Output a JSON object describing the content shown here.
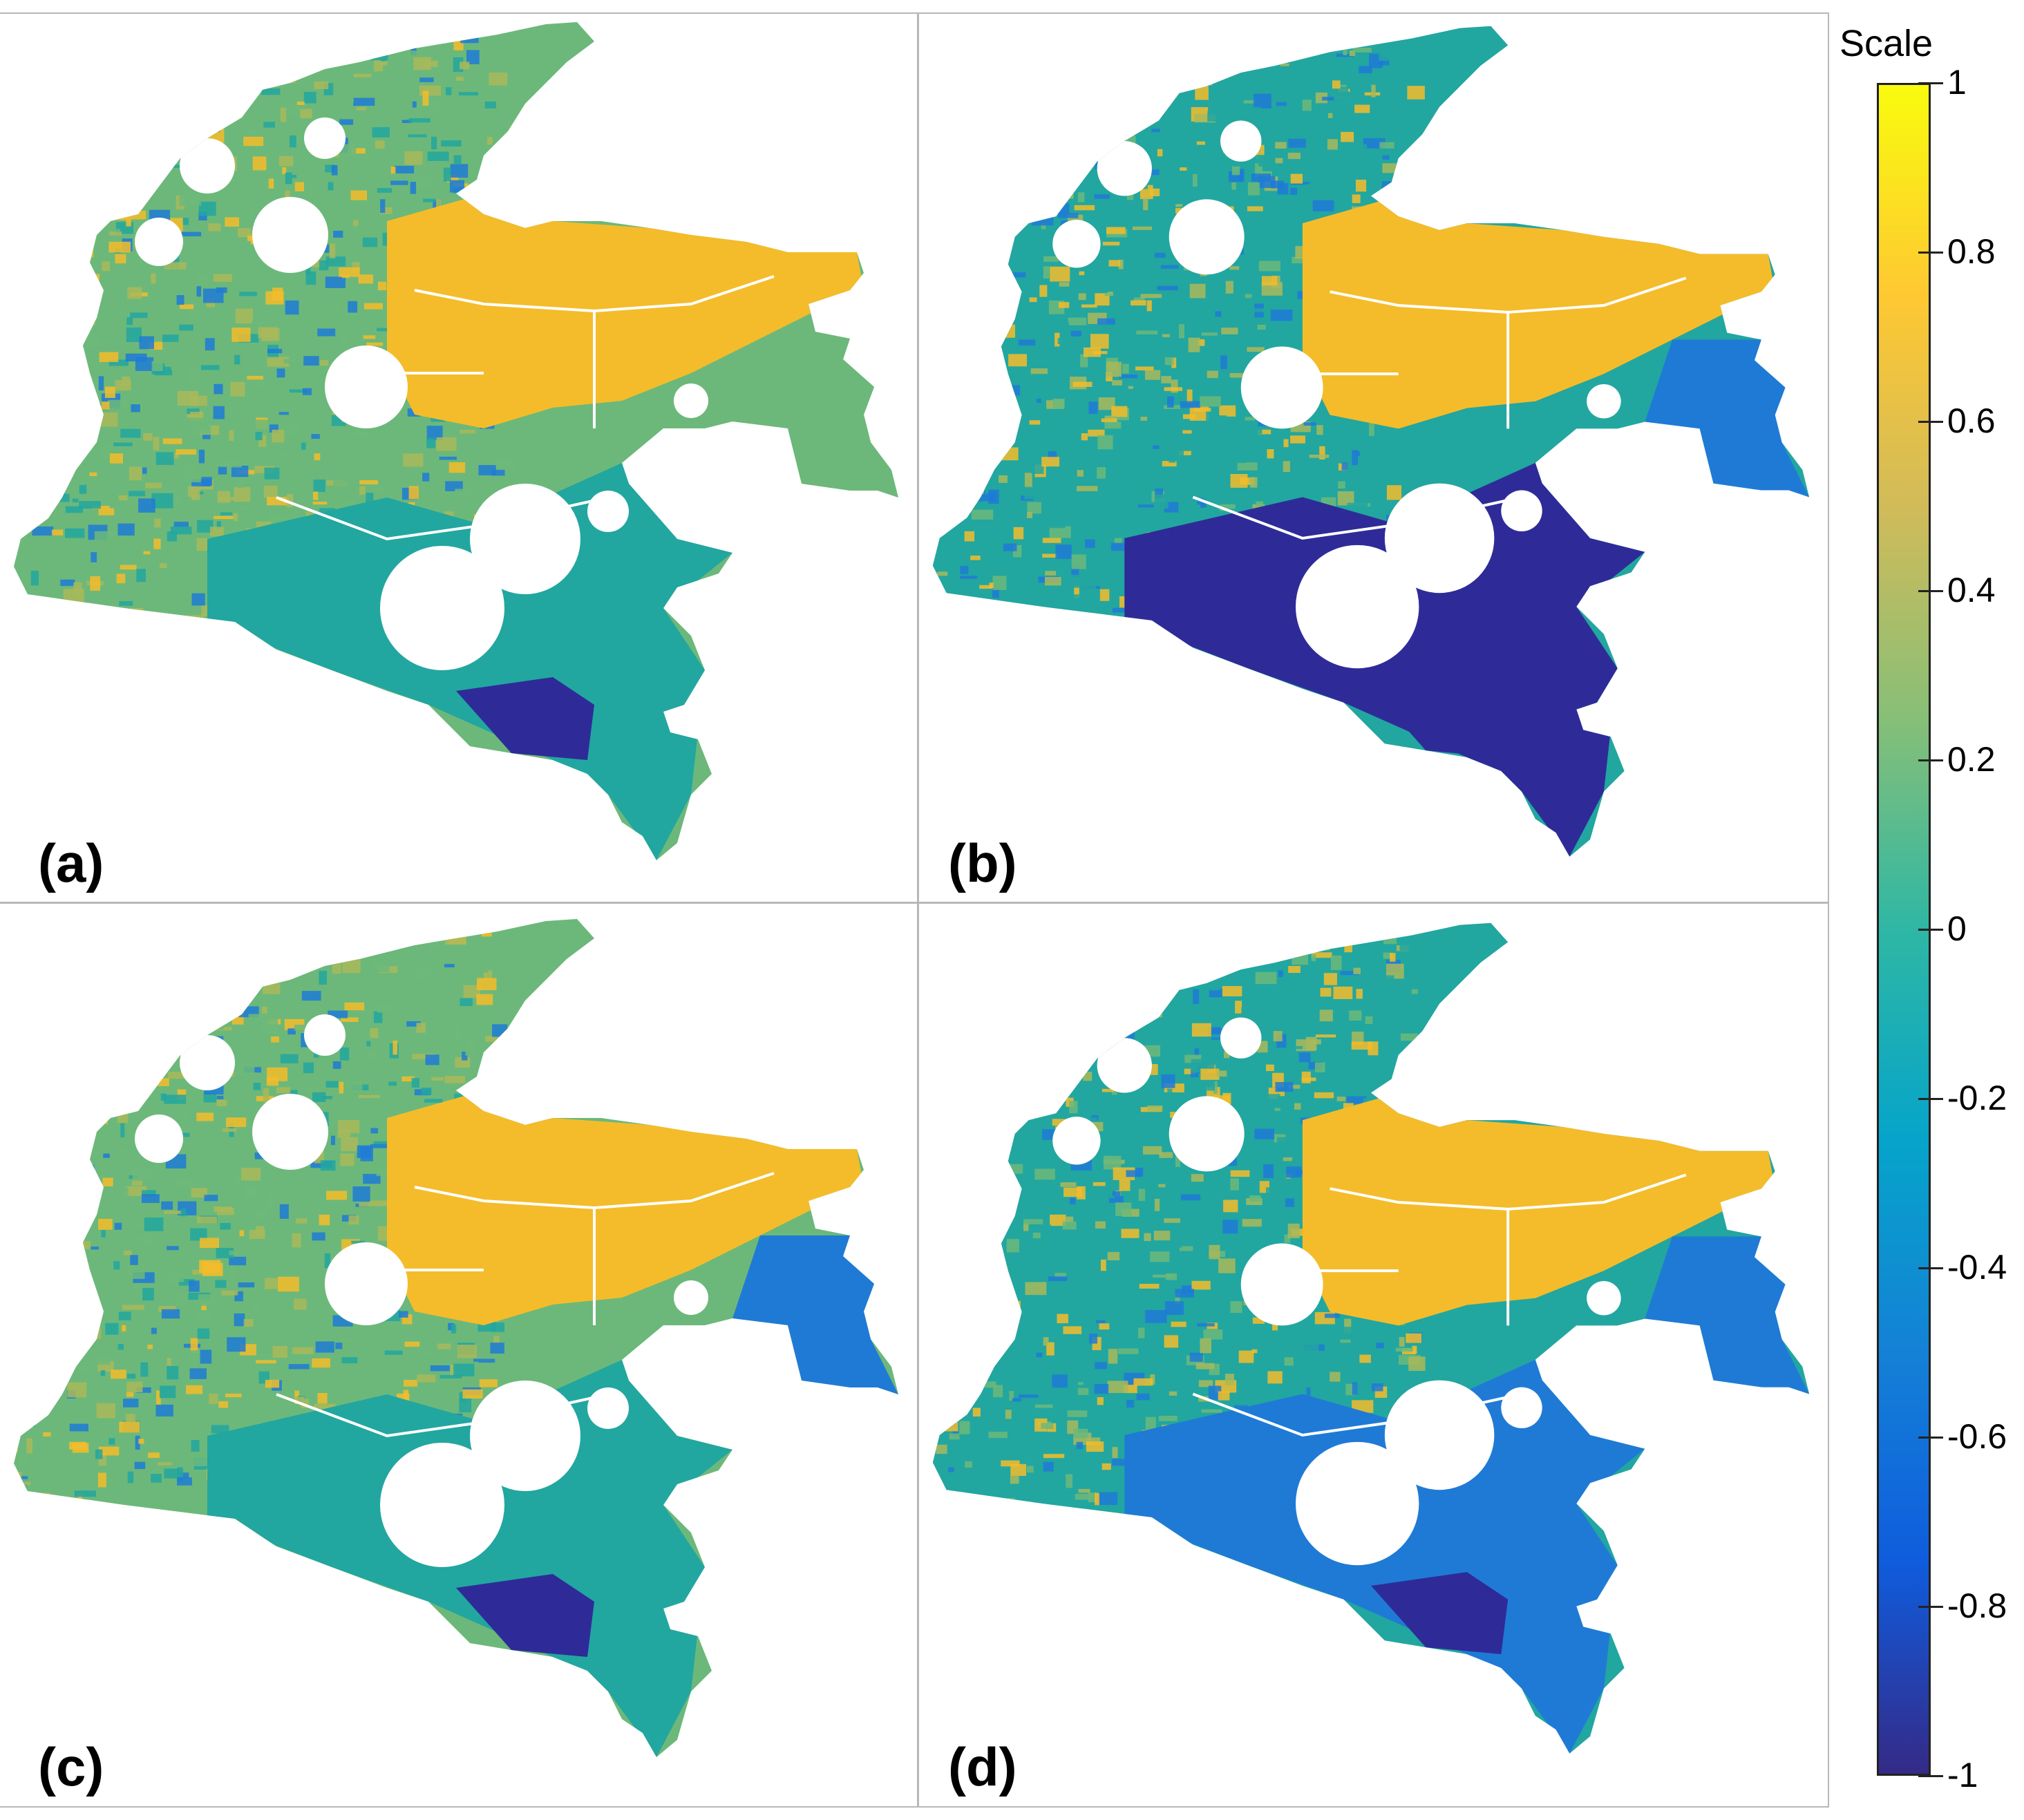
{
  "figure": {
    "panels": [
      {
        "id": "a",
        "label": "(a)",
        "palette": "mixed-green"
      },
      {
        "id": "b",
        "label": "(b)",
        "palette": "dark-blue-south"
      },
      {
        "id": "c",
        "label": "(c)",
        "palette": "mixed-teal"
      },
      {
        "id": "d",
        "label": "(d)",
        "palette": "blue-south"
      }
    ]
  },
  "colorbar": {
    "title": "Scale",
    "ticks": [
      "1",
      "0.8",
      "0.6",
      "0.4",
      "0.2",
      "0",
      "-0.2",
      "-0.4",
      "-0.6",
      "-0.8",
      "-1"
    ],
    "min": -1,
    "max": 1,
    "colormap": "parula",
    "colors": [
      "#352a87",
      "#0f5cdd",
      "#1481d6",
      "#06a4ca",
      "#2eb7a4",
      "#87bf77",
      "#d1bb59",
      "#fec832",
      "#f9fb0e"
    ]
  },
  "colors": {
    "yellow_orange": "#f4bc2a",
    "green": "#6cb87a",
    "teal": "#22a6a0",
    "blue": "#1f7ad6",
    "dark_blue": "#2e2b98"
  }
}
